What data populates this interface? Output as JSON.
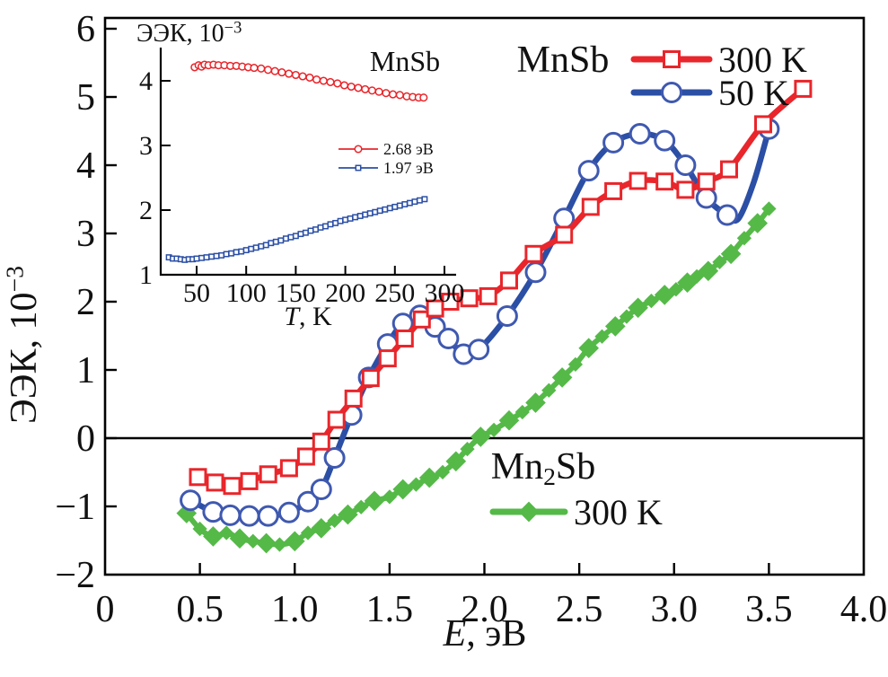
{
  "figure": {
    "background": "#ffffff",
    "frame_color": "#000000"
  },
  "chart_data": {
    "type": "line",
    "main": {
      "xlabel_parts": [
        {
          "t": "E",
          "italic": true
        },
        {
          "t": ", эВ"
        }
      ],
      "ylabel_parts": [
        {
          "t": "ЭЭК, 10"
        },
        {
          "t": "−3",
          "sup": true
        }
      ],
      "xlim": [
        0,
        4
      ],
      "ylim": [
        -2,
        6
      ],
      "grid": false,
      "zero_line": true,
      "xticks": [
        {
          "v": 0,
          "label": "0"
        },
        {
          "v": 0.5,
          "label": "0.5"
        },
        {
          "v": 1,
          "label": "1.0"
        },
        {
          "v": 1.5,
          "label": "1.5"
        },
        {
          "v": 2,
          "label": "2.0"
        },
        {
          "v": 2.5,
          "label": "2.5"
        },
        {
          "v": 3,
          "label": "3.0"
        },
        {
          "v": 3.5,
          "label": "3.5"
        },
        {
          "v": 4,
          "label": "4.0"
        }
      ],
      "yticks": [
        {
          "v": 6,
          "label": "6"
        },
        {
          "v": 5,
          "label": "5"
        },
        {
          "v": 4,
          "label": "4"
        },
        {
          "v": 3,
          "label": "3"
        },
        {
          "v": 2,
          "label": "2"
        },
        {
          "v": 1,
          "label": "1"
        },
        {
          "v": 0,
          "label": "0"
        },
        {
          "v": -1,
          "label": "−1"
        },
        {
          "v": -2,
          "label": "−2"
        }
      ],
      "series": [
        {
          "id": "mn2sb-300k",
          "name": "Mn2Sb 300 K",
          "color": "#55b948",
          "marker": "diamond",
          "marker_size": 16,
          "line_width": 6,
          "points": [
            [
              0.43,
              -1.1
            ],
            [
              0.5,
              -1.33
            ],
            [
              0.57,
              -1.44
            ],
            [
              0.64,
              -1.39
            ],
            [
              0.71,
              -1.47
            ],
            [
              0.78,
              -1.51
            ],
            [
              0.85,
              -1.54
            ],
            [
              0.92,
              -1.56
            ],
            [
              1.0,
              -1.51
            ],
            [
              1.07,
              -1.39
            ],
            [
              1.14,
              -1.32
            ],
            [
              1.21,
              -1.21
            ],
            [
              1.28,
              -1.12
            ],
            [
              1.35,
              -1.01
            ],
            [
              1.42,
              -0.92
            ],
            [
              1.5,
              -0.86
            ],
            [
              1.57,
              -0.75
            ],
            [
              1.64,
              -0.68
            ],
            [
              1.71,
              -0.58
            ],
            [
              1.78,
              -0.5
            ],
            [
              1.85,
              -0.34
            ],
            [
              1.91,
              -0.16
            ],
            [
              1.98,
              0.02
            ],
            [
              2.05,
              0.12
            ],
            [
              2.13,
              0.26
            ],
            [
              2.2,
              0.38
            ],
            [
              2.27,
              0.52
            ],
            [
              2.34,
              0.7
            ],
            [
              2.41,
              0.89
            ],
            [
              2.48,
              1.08
            ],
            [
              2.55,
              1.32
            ],
            [
              2.62,
              1.49
            ],
            [
              2.69,
              1.64
            ],
            [
              2.75,
              1.78
            ],
            [
              2.81,
              1.91
            ],
            [
              2.88,
              2.01
            ],
            [
              2.95,
              2.1
            ],
            [
              3.01,
              2.18
            ],
            [
              3.07,
              2.28
            ],
            [
              3.12,
              2.37
            ],
            [
              3.18,
              2.45
            ],
            [
              3.24,
              2.58
            ],
            [
              3.3,
              2.7
            ],
            [
              3.37,
              2.93
            ],
            [
              3.44,
              3.15
            ],
            [
              3.5,
              3.36
            ]
          ]
        },
        {
          "id": "mnsb-50k",
          "name": "MnSb 50 K",
          "color": "#2b4fa5",
          "marker_color": "#3f59b0",
          "marker": "circle",
          "marker_size": 21,
          "line_width": 6.5,
          "line_extra": [
            [
              3.34,
              3.22
            ],
            [
              3.42,
              3.75
            ]
          ],
          "points": [
            [
              0.45,
              -0.91
            ],
            [
              0.57,
              -1.08
            ],
            [
              0.66,
              -1.13
            ],
            [
              0.76,
              -1.14
            ],
            [
              0.86,
              -1.14
            ],
            [
              0.97,
              -1.09
            ],
            [
              1.07,
              -0.93
            ],
            [
              1.14,
              -0.75
            ],
            [
              1.21,
              -0.29
            ],
            [
              1.3,
              0.34
            ],
            [
              1.39,
              0.89
            ],
            [
              1.49,
              1.38
            ],
            [
              1.57,
              1.68
            ],
            [
              1.66,
              1.8
            ],
            [
              1.74,
              1.63
            ],
            [
              1.81,
              1.46
            ],
            [
              1.89,
              1.23
            ],
            [
              1.97,
              1.3
            ],
            [
              2.12,
              1.79
            ],
            [
              2.27,
              2.43
            ],
            [
              2.42,
              3.22
            ],
            [
              2.55,
              3.92
            ],
            [
              2.68,
              4.33
            ],
            [
              2.82,
              4.46
            ],
            [
              2.95,
              4.36
            ],
            [
              3.06,
              4.0
            ],
            [
              3.17,
              3.52
            ],
            [
              3.28,
              3.27
            ],
            [
              3.5,
              4.53
            ]
          ]
        },
        {
          "id": "mnsb-300k",
          "name": "MnSb 300 K",
          "color": "#e8262b",
          "marker": "square",
          "marker_size": 17,
          "line_width": 6.5,
          "points": [
            [
              0.49,
              -0.57
            ],
            [
              0.58,
              -0.65
            ],
            [
              0.67,
              -0.7
            ],
            [
              0.76,
              -0.63
            ],
            [
              0.86,
              -0.53
            ],
            [
              0.97,
              -0.44
            ],
            [
              1.06,
              -0.27
            ],
            [
              1.14,
              -0.05
            ],
            [
              1.22,
              0.27
            ],
            [
              1.31,
              0.58
            ],
            [
              1.4,
              0.88
            ],
            [
              1.49,
              1.17
            ],
            [
              1.58,
              1.46
            ],
            [
              1.67,
              1.74
            ],
            [
              1.74,
              1.9
            ],
            [
              1.82,
              2.0
            ],
            [
              1.92,
              2.05
            ],
            [
              2.02,
              2.08
            ],
            [
              2.13,
              2.31
            ],
            [
              2.26,
              2.7
            ],
            [
              2.42,
              2.98
            ],
            [
              2.56,
              3.39
            ],
            [
              2.68,
              3.62
            ],
            [
              2.81,
              3.77
            ],
            [
              2.95,
              3.76
            ],
            [
              3.06,
              3.64
            ],
            [
              3.17,
              3.76
            ],
            [
              3.29,
              3.94
            ],
            [
              3.47,
              4.6
            ],
            [
              3.68,
              5.12
            ]
          ]
        }
      ],
      "legend_groups": [
        {
          "id": "mnsb",
          "title_parts": [
            {
              "t": "MnSb"
            }
          ],
          "entries": [
            {
              "series": "mnsb-300k",
              "label": "300 K"
            },
            {
              "series": "mnsb-50k",
              "label": "50 K"
            }
          ]
        },
        {
          "id": "mn2sb",
          "title_parts": [
            {
              "t": "Mn"
            },
            {
              "t": "2",
              "sub": true
            },
            {
              "t": "Sb"
            }
          ],
          "entries": [
            {
              "series": "mn2sb-300k",
              "label": "300 K"
            }
          ]
        }
      ]
    },
    "inset": {
      "annotation": "MnSb",
      "ylabel_parts": [
        {
          "t": "ЭЭК, 10"
        },
        {
          "t": "−3",
          "sup": true
        }
      ],
      "xlabel_parts": [
        {
          "t": "T",
          "italic": true
        },
        {
          "t": ", K"
        }
      ],
      "xlim": [
        10,
        312
      ],
      "ylim": [
        1,
        4.5
      ],
      "xticks": [
        {
          "v": 50,
          "label": "50"
        },
        {
          "v": 100,
          "label": "100"
        },
        {
          "v": 150,
          "label": "150"
        },
        {
          "v": 200,
          "label": "200"
        },
        {
          "v": 250,
          "label": "250"
        },
        {
          "v": 300,
          "label": "300"
        }
      ],
      "yticks": [
        {
          "v": 1,
          "label": "1"
        },
        {
          "v": 2,
          "label": "2"
        },
        {
          "v": 3,
          "label": "3"
        },
        {
          "v": 4,
          "label": "4"
        }
      ],
      "series": [
        {
          "id": "inset-268",
          "name": "2.68 эВ",
          "color": "#e8262b",
          "marker": "circle",
          "marker_size": 7.6,
          "line_width": 1.7,
          "points": [
            [
              48,
              4.21
            ],
            [
              52,
              4.24
            ],
            [
              55,
              4.22
            ],
            [
              58,
              4.25
            ],
            [
              62,
              4.24
            ],
            [
              67,
              4.25
            ],
            [
              72,
              4.24
            ],
            [
              78,
              4.24
            ],
            [
              84,
              4.23
            ],
            [
              90,
              4.23
            ],
            [
              96,
              4.22
            ],
            [
              102,
              4.21
            ],
            [
              108,
              4.2
            ],
            [
              115,
              4.19
            ],
            [
              122,
              4.17
            ],
            [
              129,
              4.15
            ],
            [
              136,
              4.13
            ],
            [
              143,
              4.11
            ],
            [
              150,
              4.09
            ],
            [
              157,
              4.07
            ],
            [
              164,
              4.05
            ],
            [
              171,
              4.02
            ],
            [
              178,
              4.0
            ],
            [
              185,
              3.98
            ],
            [
              192,
              3.96
            ],
            [
              199,
              3.93
            ],
            [
              206,
              3.91
            ],
            [
              213,
              3.89
            ],
            [
              220,
              3.87
            ],
            [
              227,
              3.85
            ],
            [
              234,
              3.83
            ],
            [
              241,
              3.81
            ],
            [
              248,
              3.79
            ],
            [
              255,
              3.78
            ],
            [
              262,
              3.76
            ],
            [
              268,
              3.75
            ],
            [
              274,
              3.74
            ],
            [
              279,
              3.74
            ]
          ]
        },
        {
          "id": "inset-197",
          "name": "1.97 эВ",
          "color": "#2b4fa5",
          "marker": "square",
          "marker_size": 5.4,
          "line_width": 1.7,
          "points": [
            [
              22,
              1.27
            ],
            [
              26,
              1.25
            ],
            [
              30,
              1.25
            ],
            [
              34,
              1.24
            ],
            [
              38,
              1.23
            ],
            [
              42,
              1.24
            ],
            [
              46,
              1.24
            ],
            [
              50,
              1.25
            ],
            [
              55,
              1.26
            ],
            [
              60,
              1.27
            ],
            [
              65,
              1.28
            ],
            [
              70,
              1.29
            ],
            [
              75,
              1.3
            ],
            [
              80,
              1.32
            ],
            [
              85,
              1.33
            ],
            [
              90,
              1.35
            ],
            [
              95,
              1.36
            ],
            [
              100,
              1.38
            ],
            [
              105,
              1.4
            ],
            [
              110,
              1.42
            ],
            [
              115,
              1.44
            ],
            [
              120,
              1.46
            ],
            [
              125,
              1.49
            ],
            [
              130,
              1.51
            ],
            [
              135,
              1.53
            ],
            [
              140,
              1.56
            ],
            [
              145,
              1.58
            ],
            [
              150,
              1.6
            ],
            [
              155,
              1.63
            ],
            [
              160,
              1.65
            ],
            [
              165,
              1.68
            ],
            [
              170,
              1.7
            ],
            [
              175,
              1.73
            ],
            [
              180,
              1.75
            ],
            [
              185,
              1.78
            ],
            [
              190,
              1.8
            ],
            [
              195,
              1.83
            ],
            [
              200,
              1.85
            ],
            [
              205,
              1.87
            ],
            [
              210,
              1.89
            ],
            [
              215,
              1.91
            ],
            [
              220,
              1.93
            ],
            [
              225,
              1.95
            ],
            [
              230,
              1.97
            ],
            [
              235,
              1.99
            ],
            [
              240,
              2.01
            ],
            [
              245,
              2.03
            ],
            [
              250,
              2.05
            ],
            [
              255,
              2.07
            ],
            [
              260,
              2.09
            ],
            [
              265,
              2.11
            ],
            [
              270,
              2.13
            ],
            [
              275,
              2.15
            ],
            [
              280,
              2.17
            ]
          ]
        }
      ],
      "legend_entries": [
        {
          "series": "inset-268",
          "label": "2.68 эВ"
        },
        {
          "series": "inset-197",
          "label": "1.97 эВ"
        }
      ]
    }
  }
}
